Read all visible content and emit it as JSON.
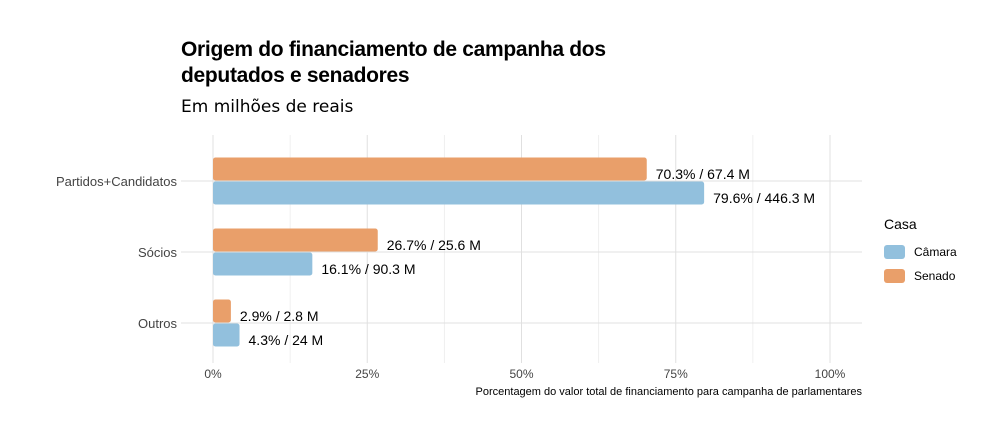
{
  "chart_data": {
    "type": "bar",
    "orientation": "horizontal",
    "title": "Origem do financiamento de campanha dos deputados e senadores",
    "subtitle": "Em milhões de reais",
    "xlabel": "Porcentagem do valor total de financiamento para campanha de parlamentares",
    "ylabel": "",
    "xlim": [
      0,
      100
    ],
    "x_ticks": [
      "0%",
      "25%",
      "50%",
      "75%",
      "100%"
    ],
    "categories": [
      "Partidos+Candidatos",
      "Sócios",
      "Outros"
    ],
    "legend_title": "Casa",
    "legend_position": "right",
    "grid": true,
    "series": [
      {
        "name": "Câmara",
        "color": "#92c0dd",
        "values": [
          79.6,
          16.1,
          4.3
        ],
        "labels": [
          "79.6% / 446.3 M",
          "16.1% / 90.3 M",
          "4.3% / 24 M"
        ]
      },
      {
        "name": "Senado",
        "color": "#e99f6a",
        "values": [
          70.3,
          26.7,
          2.9
        ],
        "labels": [
          "70.3% / 67.4 M",
          "26.7% / 25.6 M",
          "2.9% / 2.8 M"
        ]
      }
    ]
  }
}
